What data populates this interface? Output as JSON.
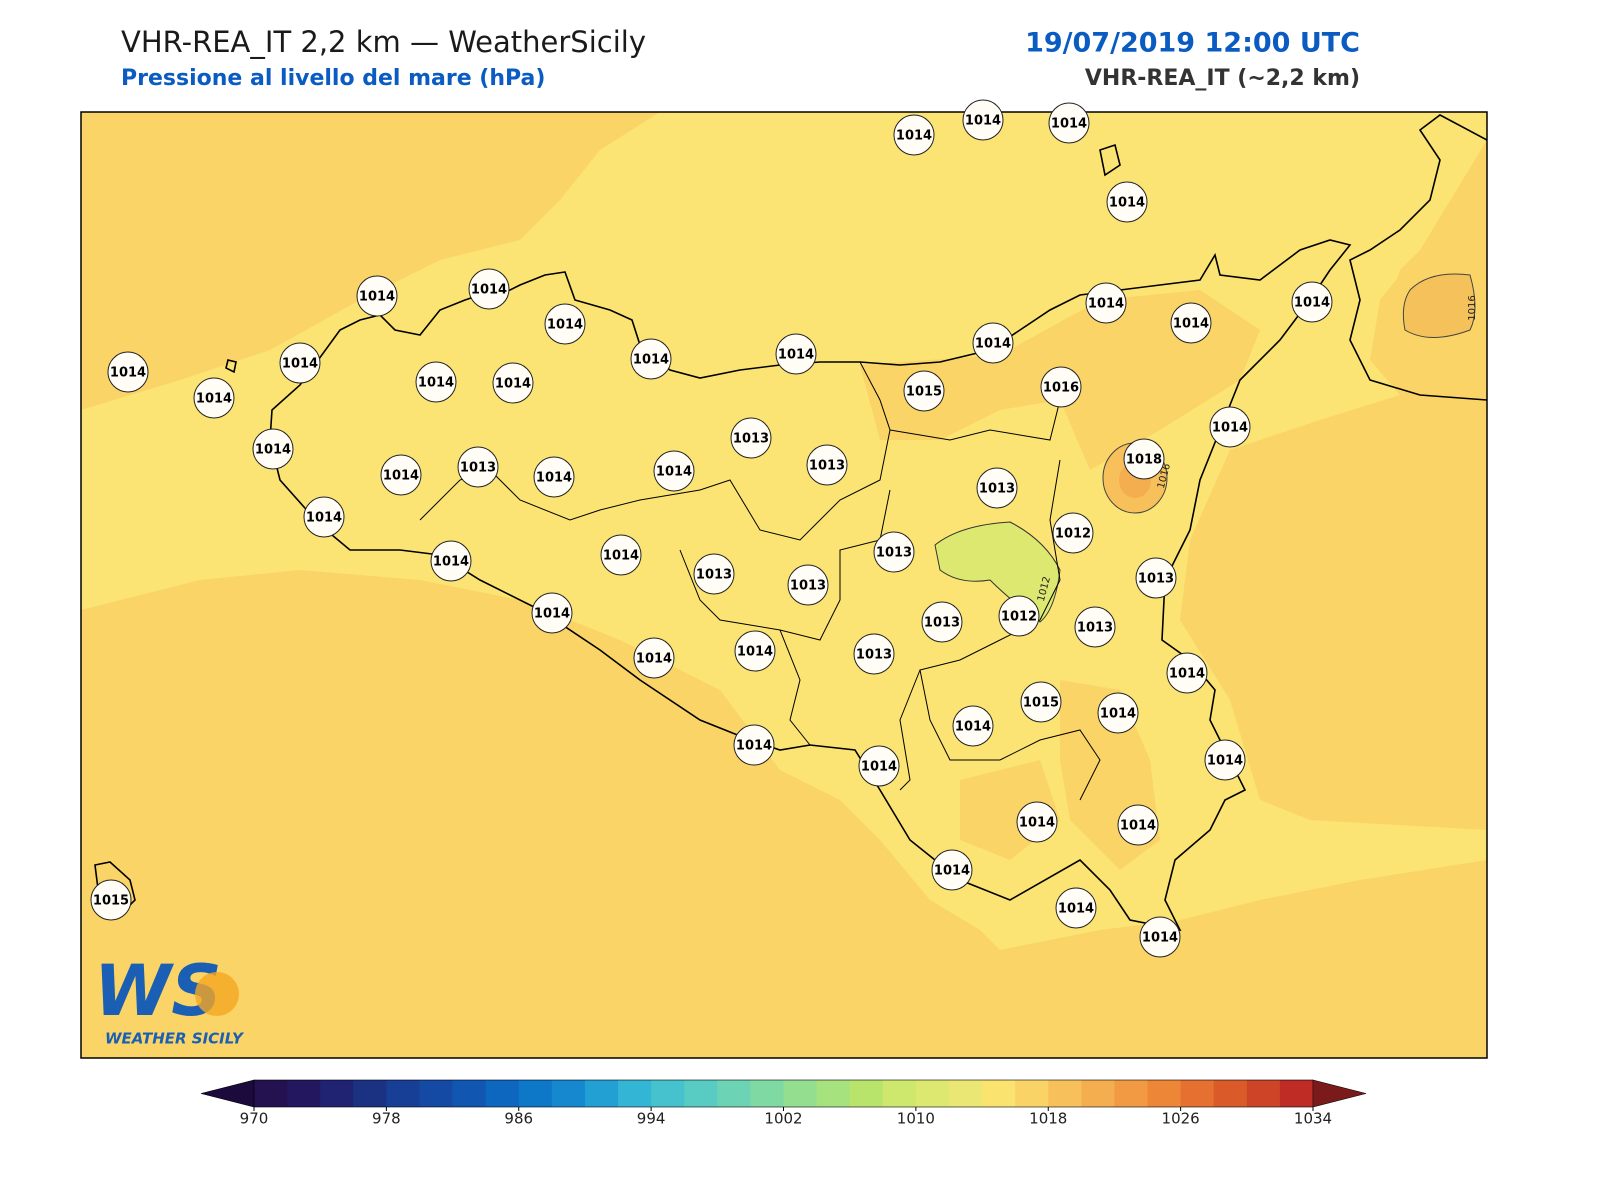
{
  "header": {
    "title": "VHR-REA_IT 2,2 km — WeatherSicily",
    "subtitle": "Pressione al livello del mare (hPa)",
    "date": "19/07/2019 12:00 UTC",
    "model": "VHR-REA_IT (~2,2 km)"
  },
  "map": {
    "stations": [
      1014,
      1014,
      1014,
      1014,
      1014,
      1014,
      1014,
      1014,
      1014,
      1014,
      1014,
      1014,
      1014,
      1014,
      1014,
      1014,
      1014,
      1014,
      1015,
      1016,
      1013,
      1014,
      1014,
      1013,
      1014,
      1014,
      1013,
      1014,
      1018,
      1013,
      1012,
      1014,
      1014,
      1014,
      1013,
      1013,
      1013,
      1013,
      1014,
      1013,
      1012,
      1013,
      1014,
      1014,
      1013,
      1014,
      1015,
      1014,
      1014,
      1014,
      1014,
      1014,
      1014,
      1014,
      1015,
      1014,
      1014,
      1014
    ],
    "contour_labels": [
      "1016",
      "1016",
      "1012"
    ],
    "logo_text": "WEATHER SICILY"
  },
  "colorbar": {
    "range": [
      970,
      1034
    ],
    "ticks": [
      970,
      978,
      986,
      994,
      1002,
      1010,
      1018,
      1026,
      1034
    ],
    "colors": [
      "#24114f",
      "#231760",
      "#1f2371",
      "#1b3283",
      "#163f95",
      "#144aa3",
      "#1157b2",
      "#0e67bf",
      "#0d77c8",
      "#1688cf",
      "#23a0d3",
      "#33b5d6",
      "#45c2cd",
      "#58cbc3",
      "#6dd3b5",
      "#7fd9a3",
      "#93de8f",
      "#a6e27d",
      "#b9e46c",
      "#cde86c",
      "#dde870",
      "#ebe774",
      "#fae36e",
      "#fad366",
      "#f7c05a",
      "#f4ad4f",
      "#f19a43",
      "#ee8638",
      "#e5702f",
      "#da5a29",
      "#cd4426",
      "#be2c25"
    ],
    "under_color": "#1c0a3d",
    "over_color": "#7a1a1a"
  }
}
